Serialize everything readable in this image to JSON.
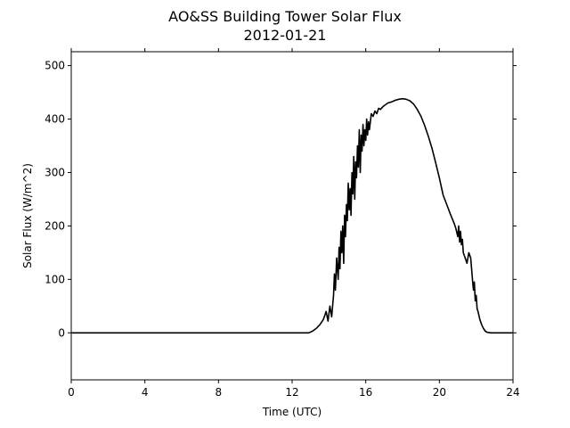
{
  "chart_data": {
    "type": "line",
    "title": "AO&SS Building Tower Solar Flux",
    "subtitle": "2012-01-21",
    "xlabel": "Time (UTC)",
    "ylabel": "Solar Flux (W/m^2)",
    "xlim": [
      0,
      24
    ],
    "ylim": [
      -88,
      526
    ],
    "x_ticks": [
      0,
      4,
      8,
      12,
      16,
      20,
      24
    ],
    "y_ticks": [
      0,
      100,
      200,
      300,
      400,
      500
    ],
    "grid": false,
    "legend": "none",
    "line_color": "#000000",
    "series": [
      {
        "x": [
          0,
          12.9,
          13.1,
          13.3,
          13.5,
          13.7,
          13.85,
          13.95,
          14.05,
          14.15,
          14.25,
          14.3,
          14.35,
          14.42,
          14.5,
          14.55,
          14.6,
          14.65,
          14.7,
          14.75,
          14.8,
          14.85,
          14.9,
          14.95,
          15.0,
          15.05,
          15.1,
          15.15,
          15.2,
          15.25,
          15.3,
          15.35,
          15.4,
          15.45,
          15.5,
          15.55,
          15.6,
          15.65,
          15.7,
          15.75,
          15.8,
          15.85,
          15.9,
          15.95,
          16.0,
          16.05,
          16.1,
          16.15,
          16.2,
          16.3,
          16.4,
          16.5,
          16.6,
          16.7,
          16.8,
          16.9,
          17.0,
          17.2,
          17.4,
          17.6,
          17.8,
          18.0,
          18.2,
          18.4,
          18.6,
          18.8,
          19.0,
          19.2,
          19.4,
          19.6,
          19.8,
          20.0,
          20.2,
          20.4,
          20.6,
          20.8,
          20.9,
          21.0,
          21.05,
          21.1,
          21.15,
          21.2,
          21.25,
          21.3,
          21.4,
          21.5,
          21.6,
          21.7,
          21.75,
          21.8,
          21.85,
          21.9,
          21.95,
          22.0,
          22.05,
          22.1,
          22.2,
          22.3,
          22.4,
          22.5,
          22.6,
          22.8,
          23.0,
          23.2,
          23.5,
          24
        ],
        "y": [
          0,
          0,
          3,
          8,
          15,
          25,
          40,
          22,
          50,
          30,
          70,
          110,
          80,
          140,
          100,
          160,
          120,
          190,
          150,
          200,
          130,
          220,
          180,
          240,
          210,
          280,
          230,
          270,
          220,
          300,
          260,
          330,
          250,
          320,
          290,
          350,
          310,
          380,
          300,
          370,
          340,
          390,
          350,
          380,
          360,
          400,
          370,
          395,
          380,
          410,
          405,
          415,
          410,
          420,
          418,
          422,
          425,
          430,
          432,
          435,
          437,
          438,
          437,
          434,
          428,
          418,
          405,
          388,
          368,
          345,
          318,
          290,
          258,
          240,
          222,
          205,
          195,
          180,
          200,
          170,
          190,
          165,
          175,
          150,
          140,
          130,
          150,
          140,
          120,
          100,
          80,
          95,
          60,
          70,
          45,
          40,
          25,
          15,
          8,
          3,
          1,
          0,
          0,
          0,
          0,
          0
        ]
      }
    ]
  }
}
